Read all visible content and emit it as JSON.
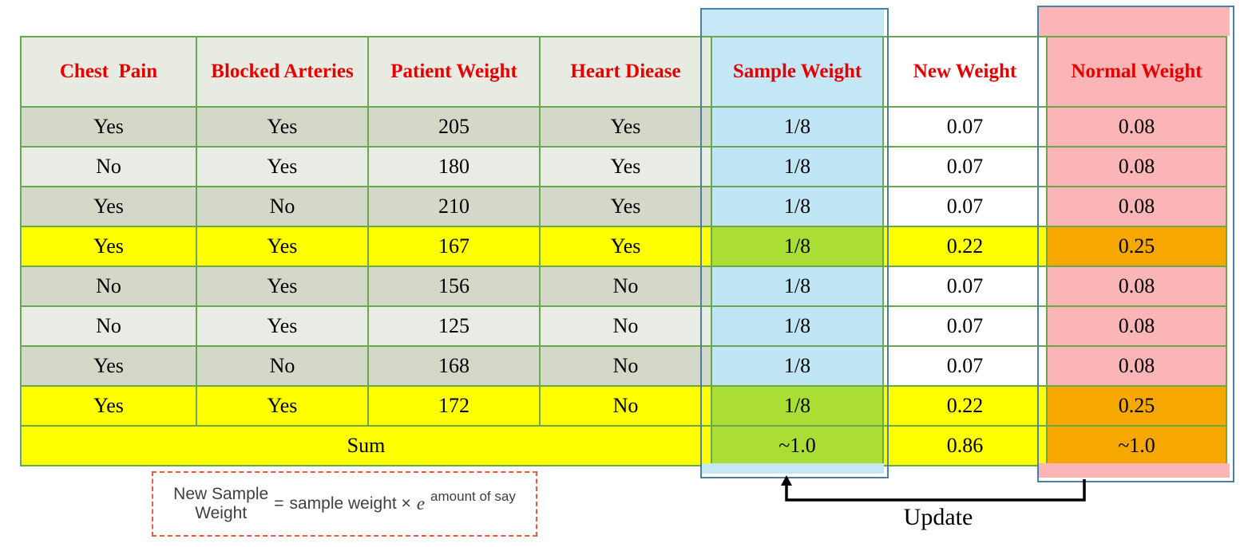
{
  "table": {
    "headers": [
      "Chest  Pain",
      "Blocked Arteries",
      "Patient Weight",
      "Heart Diease",
      "Sample Weight",
      "New Weight",
      "Normal Weight"
    ],
    "rows": [
      {
        "chest_pain": "Yes",
        "blocked_arteries": "Yes",
        "patient_weight": "205",
        "heart_disease": "Yes",
        "sample_weight": "1/8",
        "new_weight": "0.07",
        "normal_weight": "0.08",
        "highlight": false
      },
      {
        "chest_pain": "No",
        "blocked_arteries": "Yes",
        "patient_weight": "180",
        "heart_disease": "Yes",
        "sample_weight": "1/8",
        "new_weight": "0.07",
        "normal_weight": "0.08",
        "highlight": false
      },
      {
        "chest_pain": "Yes",
        "blocked_arteries": "No",
        "patient_weight": "210",
        "heart_disease": "Yes",
        "sample_weight": "1/8",
        "new_weight": "0.07",
        "normal_weight": "0.08",
        "highlight": false
      },
      {
        "chest_pain": "Yes",
        "blocked_arteries": "Yes",
        "patient_weight": "167",
        "heart_disease": "Yes",
        "sample_weight": "1/8",
        "new_weight": "0.22",
        "normal_weight": "0.25",
        "highlight": true
      },
      {
        "chest_pain": "No",
        "blocked_arteries": "Yes",
        "patient_weight": "156",
        "heart_disease": "No",
        "sample_weight": "1/8",
        "new_weight": "0.07",
        "normal_weight": "0.08",
        "highlight": false
      },
      {
        "chest_pain": "No",
        "blocked_arteries": "Yes",
        "patient_weight": "125",
        "heart_disease": "No",
        "sample_weight": "1/8",
        "new_weight": "0.07",
        "normal_weight": "0.08",
        "highlight": false
      },
      {
        "chest_pain": "Yes",
        "blocked_arteries": "No",
        "patient_weight": "168",
        "heart_disease": "No",
        "sample_weight": "1/8",
        "new_weight": "0.07",
        "normal_weight": "0.08",
        "highlight": false
      },
      {
        "chest_pain": "Yes",
        "blocked_arteries": "Yes",
        "patient_weight": "172",
        "heart_disease": "No",
        "sample_weight": "1/8",
        "new_weight": "0.22",
        "normal_weight": "0.25",
        "highlight": true
      }
    ],
    "sum_row": {
      "label": "Sum",
      "sample_weight": "~1.0",
      "new_weight": "0.86",
      "normal_weight": "~1.0"
    }
  },
  "formula": {
    "lhs_line1": "New Sample",
    "lhs_line2": "Weight",
    "equals": "=",
    "rhs": "sample weight ×",
    "base": "e",
    "exponent": "amount of say"
  },
  "annotation": {
    "update_label": "Update"
  },
  "colors": {
    "header_red": "#e60000",
    "sample_header_teal": "#17455a",
    "normal_header_maroon": "#5a1616",
    "row_gray_green": "#d3d8c8",
    "row_light": "#e9ece4",
    "row_yellow": "#ffff00",
    "sample_blue_cell": "#c0e6f5",
    "sample_green_cell": "#abde35",
    "normal_pink_cell": "#fbb5b6",
    "normal_orange_cell": "#f6a800",
    "table_border_green": "#6aa84f",
    "overlay_border_blue": "#4d7ea8",
    "formula_border_red": "#f05545"
  }
}
